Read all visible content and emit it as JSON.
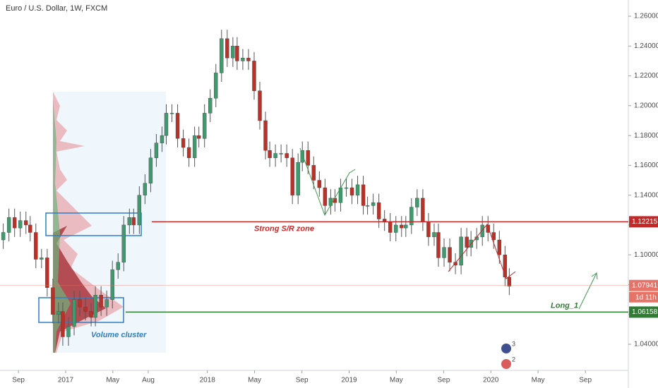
{
  "chart_data": {
    "type": "candlestick",
    "title": "Euro / U.S. Dollar, 1W, FXCM",
    "x": [
      2016.56,
      2016.6,
      2016.64,
      2016.68,
      2016.72,
      2016.75,
      2016.79,
      2016.83,
      2016.87,
      2016.91,
      2016.95,
      2016.98,
      2017.02,
      2017.06,
      2017.1,
      2017.14,
      2017.18,
      2017.21,
      2017.25,
      2017.29,
      2017.33,
      2017.37,
      2017.41,
      2017.45,
      2017.48,
      2017.52,
      2017.56,
      2017.6,
      2017.64,
      2017.68,
      2017.71,
      2017.75,
      2017.79,
      2017.83,
      2017.87,
      2017.91,
      2017.94,
      2017.98,
      2018.02,
      2018.06,
      2018.1,
      2018.14,
      2018.18,
      2018.21,
      2018.25,
      2018.29,
      2018.33,
      2018.37,
      2018.41,
      2018.44,
      2018.48,
      2018.52,
      2018.56,
      2018.6,
      2018.64,
      2018.67,
      2018.71,
      2018.75,
      2018.79,
      2018.83,
      2018.87,
      2018.9,
      2018.94,
      2018.98,
      2019.02,
      2019.06,
      2019.1,
      2019.13,
      2019.17,
      2019.21,
      2019.25,
      2019.29,
      2019.33,
      2019.37,
      2019.4,
      2019.44,
      2019.48,
      2019.52,
      2019.56,
      2019.6,
      2019.63,
      2019.67,
      2019.71,
      2019.75,
      2019.79,
      2019.83,
      2019.86,
      2019.9,
      2019.94,
      2019.98,
      2020.02,
      2020.06,
      2020.1,
      2020.13
    ],
    "open": [
      1.11,
      1.115,
      1.125,
      1.118,
      1.123,
      1.12,
      1.115,
      1.097,
      1.098,
      1.078,
      1.06,
      1.062,
      1.045,
      1.052,
      1.07,
      1.065,
      1.062,
      1.058,
      1.073,
      1.065,
      1.07,
      1.09,
      1.095,
      1.12,
      1.125,
      1.12,
      1.14,
      1.148,
      1.165,
      1.175,
      1.18,
      1.195,
      1.195,
      1.178,
      1.172,
      1.165,
      1.18,
      1.178,
      1.195,
      1.205,
      1.222,
      1.245,
      1.232,
      1.24,
      1.23,
      1.232,
      1.23,
      1.21,
      1.19,
      1.17,
      1.165,
      1.168,
      1.168,
      1.165,
      1.14,
      1.162,
      1.17,
      1.16,
      1.15,
      1.145,
      1.133,
      1.138,
      1.135,
      1.145,
      1.145,
      1.14,
      1.147,
      1.133,
      1.133,
      1.135,
      1.124,
      1.122,
      1.115,
      1.12,
      1.118,
      1.12,
      1.132,
      1.138,
      1.122,
      1.112,
      1.115,
      1.098,
      1.105,
      1.095,
      1.093,
      1.112,
      1.105,
      1.11,
      1.112,
      1.12,
      1.115,
      1.11,
      1.1,
      1.085
    ],
    "high": [
      1.121,
      1.131,
      1.131,
      1.129,
      1.129,
      1.126,
      1.121,
      1.104,
      1.104,
      1.084,
      1.068,
      1.068,
      1.058,
      1.076,
      1.076,
      1.071,
      1.068,
      1.079,
      1.079,
      1.076,
      1.096,
      1.101,
      1.126,
      1.131,
      1.131,
      1.146,
      1.154,
      1.171,
      1.181,
      1.186,
      1.201,
      1.201,
      1.201,
      1.184,
      1.178,
      1.186,
      1.186,
      1.201,
      1.211,
      1.228,
      1.251,
      1.251,
      1.246,
      1.246,
      1.238,
      1.238,
      1.236,
      1.216,
      1.196,
      1.176,
      1.174,
      1.174,
      1.174,
      1.171,
      1.168,
      1.176,
      1.176,
      1.166,
      1.156,
      1.151,
      1.144,
      1.144,
      1.151,
      1.151,
      1.151,
      1.153,
      1.153,
      1.139,
      1.141,
      1.141,
      1.13,
      1.128,
      1.126,
      1.126,
      1.126,
      1.138,
      1.144,
      1.144,
      1.128,
      1.121,
      1.121,
      1.111,
      1.111,
      1.101,
      1.118,
      1.118,
      1.116,
      1.118,
      1.126,
      1.126,
      1.121,
      1.116,
      1.106,
      1.091
    ],
    "low": [
      1.104,
      1.109,
      1.112,
      1.112,
      1.114,
      1.109,
      1.091,
      1.091,
      1.072,
      1.054,
      1.054,
      1.039,
      1.039,
      1.046,
      1.059,
      1.056,
      1.052,
      1.052,
      1.059,
      1.059,
      1.064,
      1.084,
      1.089,
      1.114,
      1.114,
      1.114,
      1.134,
      1.142,
      1.159,
      1.169,
      1.174,
      1.189,
      1.172,
      1.166,
      1.159,
      1.159,
      1.172,
      1.172,
      1.189,
      1.199,
      1.216,
      1.226,
      1.226,
      1.224,
      1.224,
      1.224,
      1.204,
      1.184,
      1.164,
      1.159,
      1.159,
      1.162,
      1.159,
      1.134,
      1.134,
      1.156,
      1.154,
      1.144,
      1.139,
      1.127,
      1.127,
      1.129,
      1.129,
      1.139,
      1.134,
      1.134,
      1.127,
      1.127,
      1.127,
      1.118,
      1.116,
      1.109,
      1.109,
      1.112,
      1.112,
      1.114,
      1.126,
      1.116,
      1.106,
      1.106,
      1.092,
      1.092,
      1.089,
      1.087,
      1.087,
      1.099,
      1.099,
      1.104,
      1.106,
      1.109,
      1.104,
      1.094,
      1.079,
      1.073
    ],
    "close": [
      1.115,
      1.125,
      1.118,
      1.123,
      1.12,
      1.115,
      1.097,
      1.098,
      1.078,
      1.06,
      1.062,
      1.045,
      1.052,
      1.07,
      1.065,
      1.062,
      1.058,
      1.073,
      1.065,
      1.07,
      1.09,
      1.095,
      1.12,
      1.125,
      1.12,
      1.14,
      1.148,
      1.165,
      1.175,
      1.18,
      1.195,
      1.195,
      1.178,
      1.172,
      1.165,
      1.18,
      1.178,
      1.195,
      1.205,
      1.222,
      1.245,
      1.232,
      1.24,
      1.23,
      1.232,
      1.23,
      1.21,
      1.19,
      1.17,
      1.165,
      1.168,
      1.168,
      1.165,
      1.14,
      1.162,
      1.17,
      1.16,
      1.15,
      1.145,
      1.133,
      1.138,
      1.135,
      1.145,
      1.145,
      1.14,
      1.147,
      1.133,
      1.133,
      1.135,
      1.124,
      1.122,
      1.115,
      1.12,
      1.118,
      1.12,
      1.132,
      1.138,
      1.122,
      1.112,
      1.115,
      1.098,
      1.105,
      1.095,
      1.093,
      1.112,
      1.105,
      1.11,
      1.112,
      1.12,
      1.115,
      1.11,
      1.1,
      1.085,
      1.079
    ],
    "up_color": "#3f9a6e",
    "down_color": "#b8322a",
    "xlim": [
      2016.537,
      2020.97
    ],
    "ylim": [
      1.0225,
      1.2709
    ],
    "xticks": [
      {
        "value": 2016.667,
        "label": "Sep"
      },
      {
        "value": 2017,
        "label": "2017"
      },
      {
        "value": 2017.333,
        "label": "May"
      },
      {
        "value": 2017.583,
        "label": "Aug"
      },
      {
        "value": 2018,
        "label": "2018"
      },
      {
        "value": 2018.333,
        "label": "May"
      },
      {
        "value": 2018.667,
        "label": "Sep"
      },
      {
        "value": 2019,
        "label": "2019"
      },
      {
        "value": 2019.333,
        "label": "May"
      },
      {
        "value": 2019.667,
        "label": "Sep"
      },
      {
        "value": 2020,
        "label": "2020"
      },
      {
        "value": 2020.333,
        "label": "May"
      },
      {
        "value": 2020.667,
        "label": "Sep"
      }
    ],
    "yticks": [
      {
        "value": 1.04,
        "label": "1.04000"
      },
      {
        "value": 1.06,
        "label": "1.06000"
      },
      {
        "value": 1.08,
        "label": "1.08000"
      },
      {
        "value": 1.1,
        "label": "1.10000"
      },
      {
        "value": 1.12,
        "label": "1.12000"
      },
      {
        "value": 1.14,
        "label": "1.14000"
      },
      {
        "value": 1.16,
        "label": "1.16000"
      },
      {
        "value": 1.18,
        "label": "1.18000"
      },
      {
        "value": 1.2,
        "label": "1.20000"
      },
      {
        "value": 1.22,
        "label": "1.22000"
      },
      {
        "value": 1.24,
        "label": "1.24000"
      },
      {
        "value": 1.26,
        "label": "1.26000"
      }
    ],
    "levels": [
      {
        "value": 1.12215,
        "color": "#c62828",
        "annotation": "Strong S/R zone"
      },
      {
        "value": 1.06158,
        "color": "#2e7d32",
        "annotation": "Long_1"
      },
      {
        "value": 1.07941,
        "color": "#e57368",
        "countdown": "1d 11h"
      }
    ],
    "volume_label": "Volume cluster",
    "events": [
      "3",
      "2"
    ]
  }
}
